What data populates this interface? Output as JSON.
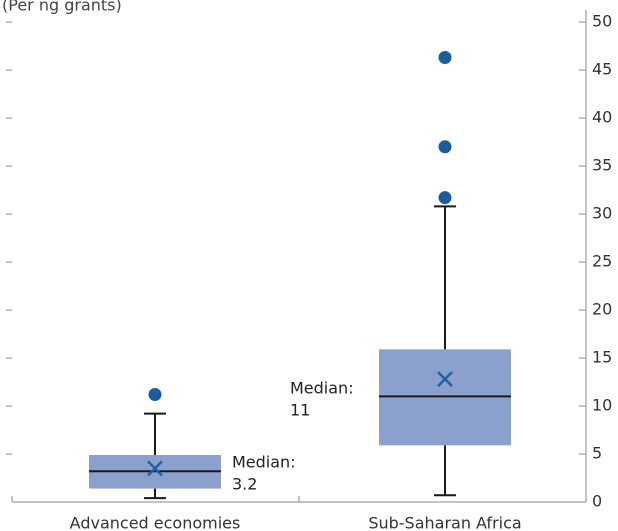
{
  "chart_data": {
    "type": "box",
    "subtitle": "(Per                           ng grants)",
    "categories": [
      "Advanced economies",
      "Sub-Saharan Africa"
    ],
    "ylim": [
      0,
      50
    ],
    "y_ticks": [
      0,
      5,
      10,
      15,
      20,
      25,
      30,
      35,
      40,
      45,
      50
    ],
    "y_axis_position": "right",
    "grid": false,
    "series": [
      {
        "category": "Advanced economies",
        "whisker_low": 0.4,
        "q1": 1.4,
        "median": 3.2,
        "q3": 4.9,
        "whisker_high": 9.2,
        "mean": 3.5,
        "outliers": [
          11.2
        ],
        "annotation": [
          "Median:",
          "3.2"
        ]
      },
      {
        "category": "Sub-Saharan Africa",
        "whisker_low": 0.7,
        "q1": 5.9,
        "median": 11,
        "q3": 15.9,
        "whisker_high": 30.8,
        "mean": 12.8,
        "outliers": [
          31.7,
          37.0,
          46.3
        ],
        "annotation": [
          "Median:",
          "11"
        ]
      }
    ],
    "colors": {
      "box_fill": "#8ba0cd",
      "mean_marker": "#1f5fa6",
      "outlier": "#1a5c9e",
      "median_line": "#1a1a1a",
      "whisker": "#1a1a1a",
      "axis": "#888888"
    }
  }
}
